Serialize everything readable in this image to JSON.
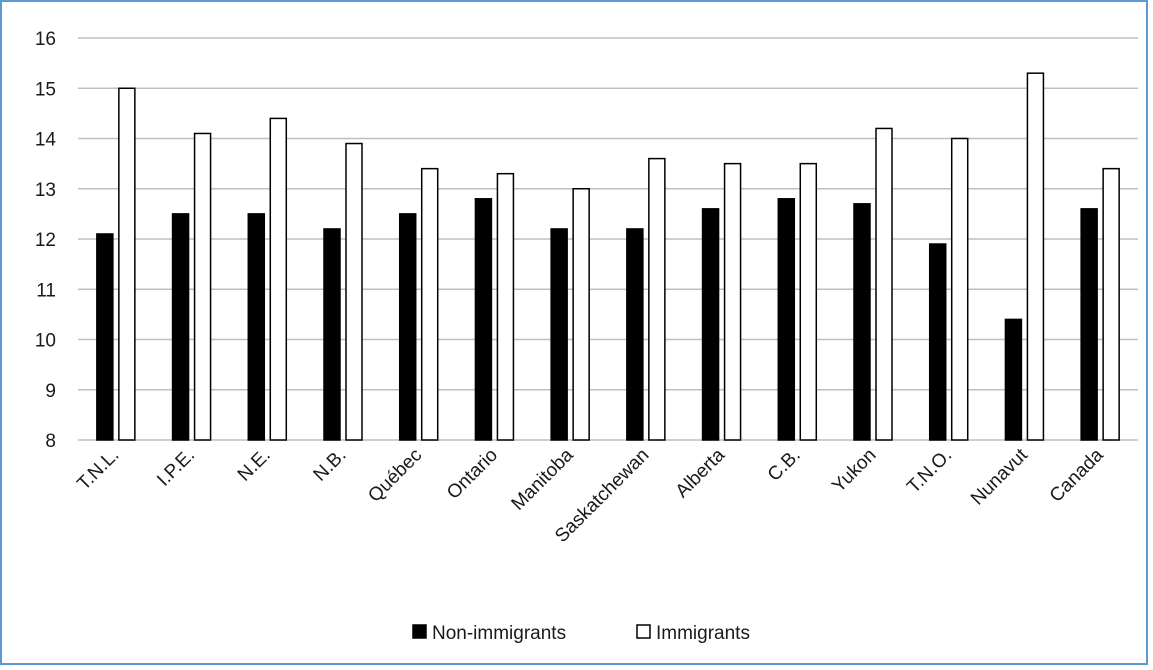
{
  "chart_data": {
    "type": "bar",
    "title": "",
    "xlabel": "",
    "ylabel": "",
    "ylim": [
      8,
      16
    ],
    "yticks": [
      8,
      9,
      10,
      11,
      12,
      13,
      14,
      15,
      16
    ],
    "grid": true,
    "legend_position": "bottom",
    "categories": [
      "T.N.L.",
      "I.P.E.",
      "N.E.",
      "N.B.",
      "Québec",
      "Ontario",
      "Manitoba",
      "Saskatchewan",
      "Alberta",
      "C.B.",
      "Yukon",
      "T.N.O.",
      "Nunavut",
      "Canada"
    ],
    "series": [
      {
        "name": "Non-immigrants",
        "color": "#000000",
        "values": [
          12.1,
          12.5,
          12.5,
          12.2,
          12.5,
          12.8,
          12.2,
          12.2,
          12.6,
          12.8,
          12.7,
          11.9,
          10.4,
          12.6
        ]
      },
      {
        "name": "Immigrants",
        "color": "#ffffff",
        "values": [
          15.0,
          14.1,
          14.4,
          13.9,
          13.4,
          13.3,
          13.0,
          13.6,
          13.5,
          13.5,
          14.2,
          14.0,
          15.3,
          13.4
        ]
      }
    ]
  },
  "colors": {
    "frame_border": "#5b9bd5",
    "gridline": "#bfbfbf",
    "bar_outline": "#000000"
  }
}
